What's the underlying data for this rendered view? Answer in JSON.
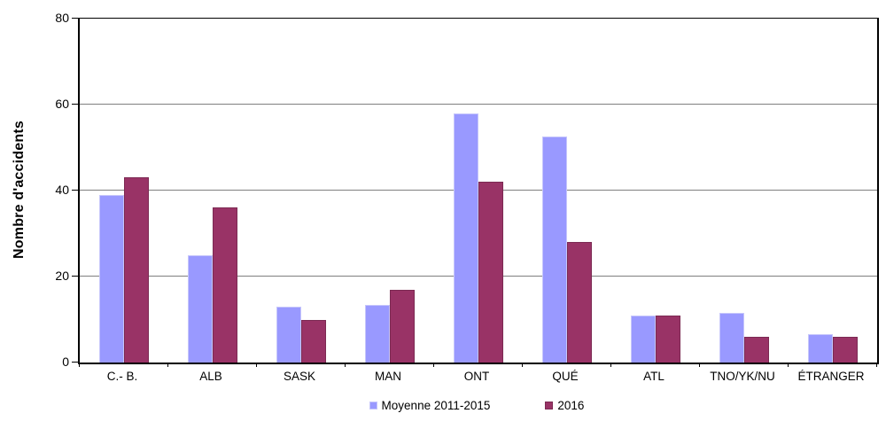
{
  "chart_data": {
    "type": "bar",
    "title": "",
    "xlabel": "",
    "ylabel": "Nombre d'accidents",
    "ylim": [
      0,
      80
    ],
    "yticks": [
      0,
      20,
      40,
      60,
      80
    ],
    "grid": true,
    "legend_position": "bottom",
    "categories": [
      "C.- B.",
      "ALB",
      "SASK",
      "MAN",
      "ONT",
      "QUÉ",
      "ATL",
      "TNO/YK/NU",
      "ÉTRANGER"
    ],
    "series": [
      {
        "name": "Moyenne 2011-2015",
        "color": "#9999FF",
        "border_color": "#c6c6fb",
        "values": [
          39,
          25,
          13,
          13.5,
          58,
          52.5,
          11,
          11.5,
          6.5
        ]
      },
      {
        "name": "2016",
        "color": "#993366",
        "border_color": "#7c2a53",
        "values": [
          43,
          36,
          10,
          17,
          42,
          28,
          11,
          6,
          6
        ]
      }
    ]
  }
}
